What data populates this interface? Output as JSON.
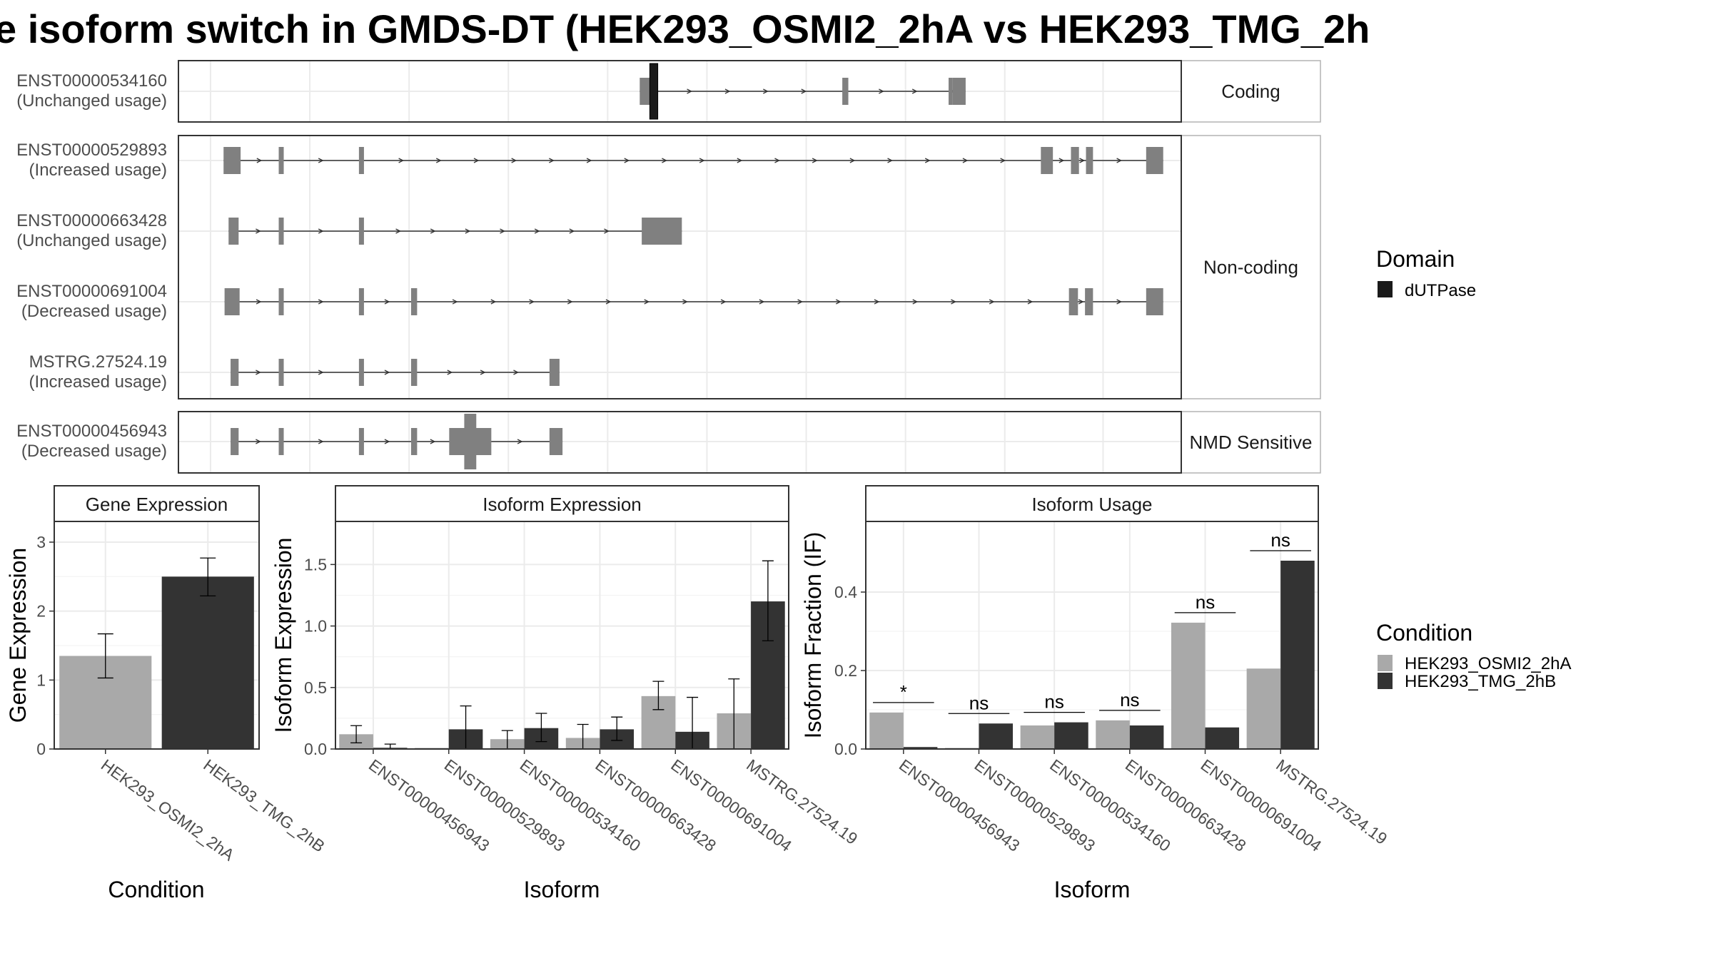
{
  "title": "e isoform switch in GMDS-DT (HEK293_OSMI2_2hA vs HEK293_TMG_2h",
  "colors": {
    "cond1": "#a9a9a9",
    "cond2": "#333333",
    "exon": "#808080",
    "domain": "#1a1a1a"
  },
  "transcripts": {
    "groups": [
      {
        "label": "Coding",
        "rows": [
          {
            "id": "ENST00000534160",
            "usage": "(Unchanged usage)",
            "exons": [
              [
                0.46,
                0.472
              ],
              [
                0.662,
                0.668
              ],
              [
                0.768,
                0.772
              ],
              [
                0.772,
                0.785
              ]
            ],
            "domains": [
              [
                0.47,
                0.478
              ]
            ]
          }
        ]
      },
      {
        "label": "Non-coding",
        "rows": [
          {
            "id": "ENST00000529893",
            "usage": "(Increased usage)",
            "exons": [
              [
                0.045,
                0.062
              ],
              [
                0.1,
                0.105
              ],
              [
                0.18,
                0.185
              ],
              [
                0.86,
                0.872
              ],
              [
                0.89,
                0.898
              ],
              [
                0.905,
                0.912
              ],
              [
                0.965,
                0.982
              ]
            ],
            "domains": []
          },
          {
            "id": "ENST00000663428",
            "usage": "(Unchanged usage)",
            "exons": [
              [
                0.05,
                0.06
              ],
              [
                0.1,
                0.105
              ],
              [
                0.18,
                0.185
              ],
              [
                0.462,
                0.502
              ]
            ],
            "domains": []
          },
          {
            "id": "ENST00000691004",
            "usage": "(Decreased usage)",
            "exons": [
              [
                0.046,
                0.061
              ],
              [
                0.1,
                0.105
              ],
              [
                0.18,
                0.185
              ],
              [
                0.232,
                0.238
              ],
              [
                0.888,
                0.897
              ],
              [
                0.904,
                0.912
              ],
              [
                0.965,
                0.982
              ]
            ],
            "domains": []
          },
          {
            "id": "MSTRG.27524.19",
            "usage": "(Increased usage)",
            "exons": [
              [
                0.052,
                0.06
              ],
              [
                0.1,
                0.105
              ],
              [
                0.18,
                0.185
              ],
              [
                0.232,
                0.238
              ],
              [
                0.37,
                0.38
              ]
            ],
            "domains": []
          }
        ]
      },
      {
        "label": "NMD Sensitive",
        "rows": [
          {
            "id": "ENST00000456943",
            "usage": "(Decreased usage)",
            "exons": [
              [
                0.052,
                0.06
              ],
              [
                0.1,
                0.105
              ],
              [
                0.18,
                0.185
              ],
              [
                0.232,
                0.238
              ],
              [
                0.27,
                0.312
              ],
              [
                0.37,
                0.383
              ]
            ],
            "tall": [
              0.285,
              0.297
            ],
            "domains": []
          }
        ]
      }
    ]
  },
  "chart_data": [
    {
      "type": "bar",
      "title": "Gene Expression",
      "xlabel": "Condition",
      "ylabel": "Gene Expression",
      "ylim": [
        0,
        3.3
      ],
      "yticks": [
        "0",
        "1",
        "2",
        "3"
      ],
      "categories": [
        "HEK293_OSMI2_2hA",
        "HEK293_TMG_2hB"
      ],
      "values": [
        1.35,
        2.5
      ],
      "error_low": [
        1.03,
        2.22
      ],
      "error_high": [
        1.67,
        2.77
      ]
    },
    {
      "type": "bar",
      "title": "Isoform Expression",
      "xlabel": "Isoform",
      "ylabel": "Isoform Expression",
      "ylim": [
        0,
        1.85
      ],
      "yticks": [
        "0.0",
        "0.5",
        "1.0",
        "1.5"
      ],
      "categories": [
        "ENST00000456943",
        "ENST00000529893",
        "ENST00000534160",
        "ENST00000663428",
        "ENST00000691004",
        "MSTRG.27524.19"
      ],
      "series": [
        {
          "name": "HEK293_OSMI2_2hA",
          "values": [
            0.12,
            0.0,
            0.08,
            0.09,
            0.43,
            0.29
          ],
          "error_low": [
            0.05,
            0.0,
            0.0,
            0.0,
            0.32,
            0.0
          ],
          "error_high": [
            0.19,
            0.0,
            0.15,
            0.2,
            0.55,
            0.57
          ]
        },
        {
          "name": "HEK293_TMG_2hB",
          "values": [
            0.01,
            0.16,
            0.17,
            0.16,
            0.14,
            1.2
          ],
          "error_low": [
            0.0,
            0.0,
            0.06,
            0.07,
            0.0,
            0.88
          ],
          "error_high": [
            0.04,
            0.35,
            0.29,
            0.26,
            0.42,
            1.53
          ]
        }
      ]
    },
    {
      "type": "bar",
      "title": "Isoform Usage",
      "xlabel": "Isoform",
      "ylabel": "Isoform Fraction (IF)",
      "ylim": [
        0,
        0.58
      ],
      "yticks": [
        "0.0",
        "0.2",
        "0.4"
      ],
      "categories": [
        "ENST00000456943",
        "ENST00000529893",
        "ENST00000534160",
        "ENST00000663428",
        "ENST00000691004",
        "MSTRG.27524.19"
      ],
      "series": [
        {
          "name": "HEK293_OSMI2_2hA",
          "values": [
            0.093,
            0.0,
            0.06,
            0.073,
            0.322,
            0.205
          ]
        },
        {
          "name": "HEK293_TMG_2hB",
          "values": [
            0.005,
            0.065,
            0.068,
            0.06,
            0.055,
            0.48
          ]
        }
      ],
      "significance": [
        "*",
        "ns",
        "ns",
        "ns",
        "ns",
        "ns"
      ]
    }
  ],
  "legend": {
    "domain_title": "Domain",
    "domain_items": [
      "dUTPase"
    ],
    "condition_title": "Condition",
    "condition_items": [
      "HEK293_OSMI2_2hA",
      "HEK293_TMG_2hB"
    ]
  }
}
